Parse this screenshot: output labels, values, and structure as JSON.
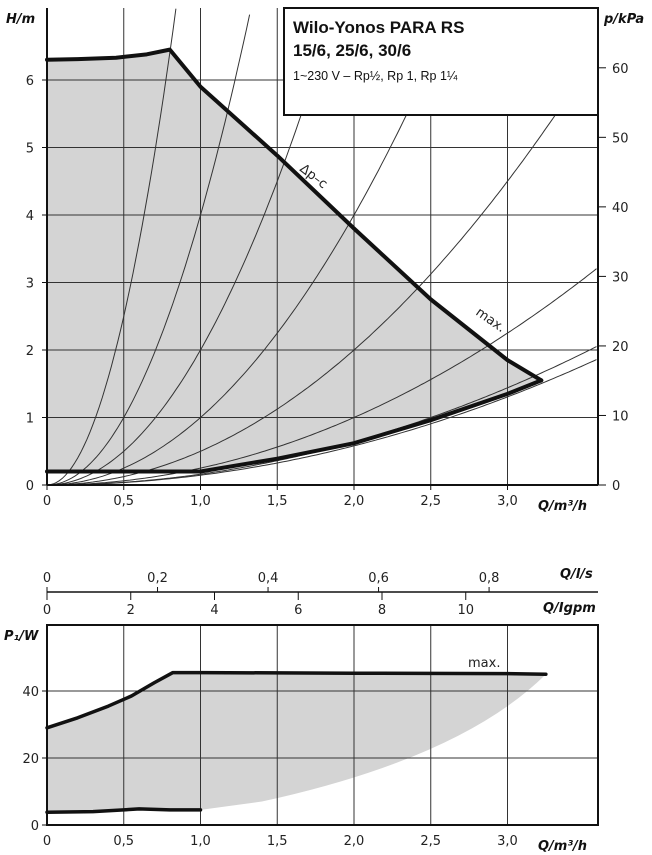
{
  "colors": {
    "line": "#111111",
    "fill": "#d4d4d4",
    "grid": "#333333",
    "thin": "#333333"
  },
  "chart_data": [
    {
      "type": "line",
      "title": "Wilo-Yonos PARA RS",
      "subtitle": "15/6, 25/6, 30/6",
      "supply_note": "1~230 V – Rp½, Rp 1, Rp 1¼",
      "xlabel": "Q/m³/h",
      "ylabel": "H/m",
      "y2label": "p/kPa",
      "xlim": [
        0,
        3.5
      ],
      "ylim": [
        0,
        7
      ],
      "y2lim": [
        0,
        68.6
      ],
      "grid": true,
      "x_ticks": [
        "0",
        "0,5",
        "1,0",
        "1,5",
        "2,0",
        "2,5",
        "3,0"
      ],
      "x_tick_values": [
        0,
        0.5,
        1.0,
        1.5,
        2.0,
        2.5,
        3.0
      ],
      "y_ticks": [
        "0",
        "1",
        "2",
        "3",
        "4",
        "5",
        "6"
      ],
      "y_tick_values": [
        0,
        1,
        2,
        3,
        4,
        5,
        6
      ],
      "y2_ticks": [
        "0",
        "10",
        "20",
        "30",
        "40",
        "50",
        "60"
      ],
      "y2_tick_values": [
        0,
        10,
        20,
        30,
        40,
        50,
        60
      ],
      "annotations": [
        "Δp–c",
        "max."
      ],
      "series": [
        {
          "name": "max.",
          "x": [
            0,
            0.2,
            0.45,
            0.65,
            0.8,
            1.0,
            1.5,
            2.0,
            2.5,
            3.0,
            3.22
          ],
          "y": [
            6.3,
            6.31,
            6.33,
            6.38,
            6.45,
            5.9,
            4.88,
            3.8,
            2.75,
            1.85,
            1.55
          ]
        },
        {
          "name": "min.",
          "x": [
            0,
            1.0,
            1.5,
            2.0,
            2.5,
            3.0,
            3.22
          ],
          "y": [
            0.2,
            0.2,
            0.39,
            0.62,
            0.96,
            1.35,
            1.55
          ]
        },
        {
          "name": "system curves",
          "k": [
            10,
            4,
            2,
            1,
            0.5,
            0.25,
            0.16,
            0.145
          ]
        }
      ]
    },
    {
      "type": "line",
      "xlabel": "Q/m³/h",
      "ylabel": "P₁/W",
      "xlim": [
        0,
        3.5
      ],
      "ylim": [
        0,
        52
      ],
      "grid": true,
      "x_ticks": [
        "0",
        "0,5",
        "1,0",
        "1,5",
        "2,0",
        "2,5",
        "3,0"
      ],
      "x_tick_values": [
        0,
        0.5,
        1.0,
        1.5,
        2.0,
        2.5,
        3.0
      ],
      "y_ticks": [
        "0",
        "20",
        "40"
      ],
      "y_tick_values": [
        0,
        20,
        40
      ],
      "secondary_axes": [
        {
          "label": "Q/l/s",
          "ticks": [
            "0",
            "0,2",
            "0,4",
            "0,6",
            "0,8"
          ],
          "values": [
            0,
            0.2,
            0.4,
            0.6,
            0.8
          ]
        },
        {
          "label": "Q/Igpm",
          "ticks": [
            "0",
            "2",
            "4",
            "6",
            "8",
            "10"
          ],
          "values": [
            0,
            2,
            4,
            6,
            8,
            10
          ]
        }
      ],
      "annotations": [
        "max."
      ],
      "series": [
        {
          "name": "max.",
          "x": [
            0,
            0.2,
            0.4,
            0.55,
            0.7,
            0.82,
            1.0,
            2.0,
            3.0,
            3.25
          ],
          "y": [
            29,
            32,
            35.5,
            38.5,
            42.5,
            45.5,
            45.5,
            45.3,
            45.2,
            45
          ]
        },
        {
          "name": "min.",
          "x": [
            0,
            0.3,
            0.6,
            0.8,
            1.0
          ],
          "y": [
            3.8,
            4.0,
            4.8,
            4.5,
            4.5
          ]
        }
      ]
    }
  ]
}
